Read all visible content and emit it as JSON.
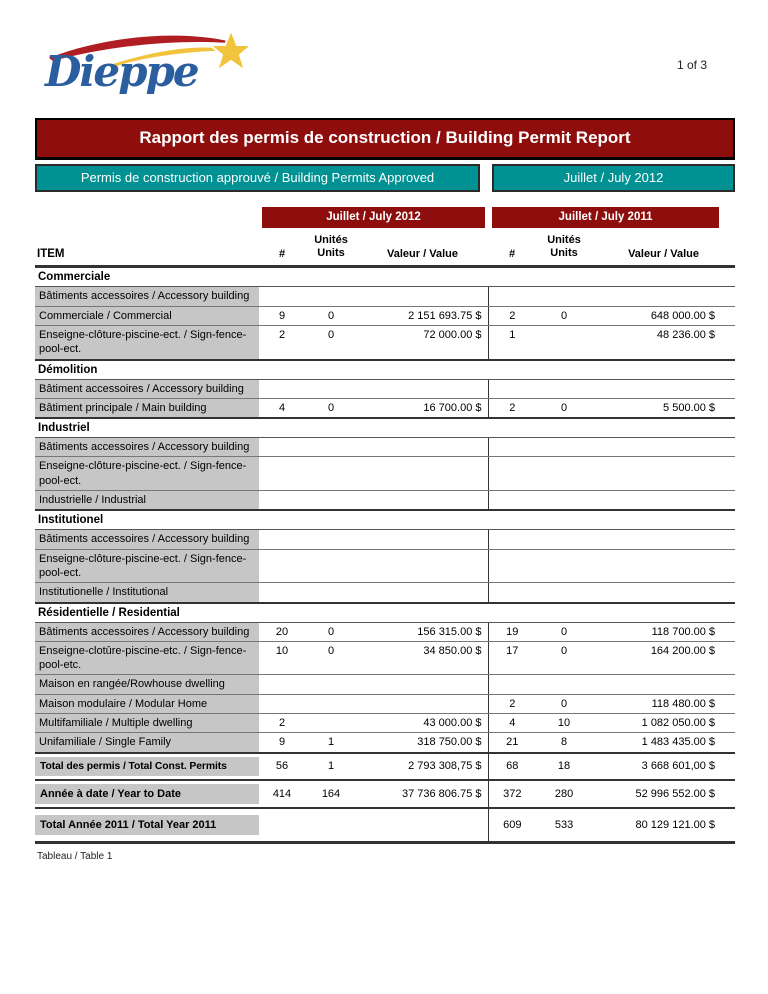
{
  "page": {
    "logo_text": "Dieppe",
    "page_number": "1 of 3",
    "footer_caption": "Tableau / Table 1"
  },
  "banners": {
    "title": "Rapport des permis de construction / Building Permit Report",
    "approved_label": "Permis de construction approuvé / Building Permits Approved",
    "period_label": "Juillet / July 2012"
  },
  "table": {
    "group_headers": [
      "Juillet / July 2012",
      "Juillet / July 2011"
    ],
    "columns": {
      "item": "ITEM",
      "count": "#",
      "units": [
        "Unités",
        "Units"
      ],
      "value": "Valeur / Value"
    },
    "sections": [
      {
        "name": "Commerciale",
        "rows": [
          {
            "label": "Bâtiments accessoires / Accessory building",
            "y2012": [
              "",
              "",
              ""
            ],
            "y2011": [
              "",
              "",
              ""
            ]
          },
          {
            "label": "Commerciale / Commercial",
            "y2012": [
              "9",
              "0",
              "2 151 693.75 $"
            ],
            "y2011": [
              "2",
              "0",
              "648 000.00 $"
            ]
          },
          {
            "label": "Enseigne-clôture-piscine-ect. / Sign-fence-pool-ect.",
            "y2012": [
              "2",
              "0",
              "72 000.00 $"
            ],
            "y2011": [
              "1",
              "",
              "48 236.00 $"
            ]
          }
        ]
      },
      {
        "name": "Démolition",
        "rows": [
          {
            "label": "Bâtiment accessoires / Accessory building",
            "y2012": [
              "",
              "",
              ""
            ],
            "y2011": [
              "",
              "",
              ""
            ]
          },
          {
            "label": "Bâtiment principale / Main building",
            "y2012": [
              "4",
              "0",
              "16 700.00 $"
            ],
            "y2011": [
              "2",
              "0",
              "5 500.00 $"
            ]
          }
        ]
      },
      {
        "name": "Industriel",
        "rows": [
          {
            "label": "Bâtiments accessoires / Accessory building",
            "y2012": [
              "",
              "",
              ""
            ],
            "y2011": [
              "",
              "",
              ""
            ]
          },
          {
            "label": "Enseigne-clôture-piscine-ect. / Sign-fence-pool-ect.",
            "y2012": [
              "",
              "",
              ""
            ],
            "y2011": [
              "",
              "",
              ""
            ]
          },
          {
            "label": "Industrielle / Industrial",
            "y2012": [
              "",
              "",
              ""
            ],
            "y2011": [
              "",
              "",
              ""
            ]
          }
        ]
      },
      {
        "name": "Institutionel",
        "rows": [
          {
            "label": "Bâtiments accessoires / Accessory building",
            "y2012": [
              "",
              "",
              ""
            ],
            "y2011": [
              "",
              "",
              ""
            ]
          },
          {
            "label": "Enseigne-clôture-piscine-ect. / Sign-fence-pool-ect.",
            "y2012": [
              "",
              "",
              ""
            ],
            "y2011": [
              "",
              "",
              ""
            ]
          },
          {
            "label": "Institutionelle / Institutional",
            "y2012": [
              "",
              "",
              ""
            ],
            "y2011": [
              "",
              "",
              ""
            ]
          }
        ]
      },
      {
        "name": "Résidentielle / Residential",
        "rows": [
          {
            "label": "Bâtiments accessoires / Accessory building",
            "y2012": [
              "20",
              "0",
              "156 315.00 $"
            ],
            "y2011": [
              "19",
              "0",
              "118 700.00 $"
            ]
          },
          {
            "label": "Enseigne-clotûre-piscine-etc. / Sign-fence-pool-etc.",
            "y2012": [
              "10",
              "0",
              "34 850.00 $"
            ],
            "y2011": [
              "17",
              "0",
              "164 200.00 $"
            ]
          },
          {
            "label": "Maison en rangée/Rowhouse dwelling",
            "y2012": [
              "",
              "",
              ""
            ],
            "y2011": [
              "",
              "",
              ""
            ]
          },
          {
            "label": "Maison modulaire / Modular Home",
            "y2012": [
              "",
              "",
              ""
            ],
            "y2011": [
              "2",
              "0",
              "118 480.00 $"
            ]
          },
          {
            "label": "Multifamiliale / Multiple dwelling",
            "y2012": [
              "2",
              "",
              "43 000.00 $"
            ],
            "y2011": [
              "4",
              "10",
              "1 082 050.00 $"
            ]
          },
          {
            "label": "Unifamiliale / Single Family",
            "y2012": [
              "9",
              "1",
              "318 750.00 $"
            ],
            "y2011": [
              "21",
              "8",
              "1 483 435.00 $"
            ]
          }
        ]
      }
    ],
    "totals": [
      {
        "label": "Total des permis / Total Const. Permits",
        "y2012": [
          "56",
          "1",
          "2 793 308,75 $"
        ],
        "y2011": [
          "68",
          "18",
          "3 668 601,00 $"
        ],
        "compact": true
      },
      {
        "label": "Année à date / Year to Date",
        "y2012": [
          "414",
          "164",
          "37 736 806.75 $"
        ],
        "y2011": [
          "372",
          "280",
          "52 996 552.00 $"
        ]
      },
      {
        "label": "Total Année 2011 / Total Year 2011",
        "y2012": [
          "",
          "",
          ""
        ],
        "y2011": [
          "609",
          "533",
          "80 129 121.00 $"
        ]
      }
    ]
  },
  "colors": {
    "banner_red": "#8E0E0E",
    "teal": "#009193",
    "label_gray": "#C6C6C6",
    "logo_blue": "#2A5E9E",
    "logo_red": "#B01E23",
    "logo_yellow": "#F2C43D"
  }
}
